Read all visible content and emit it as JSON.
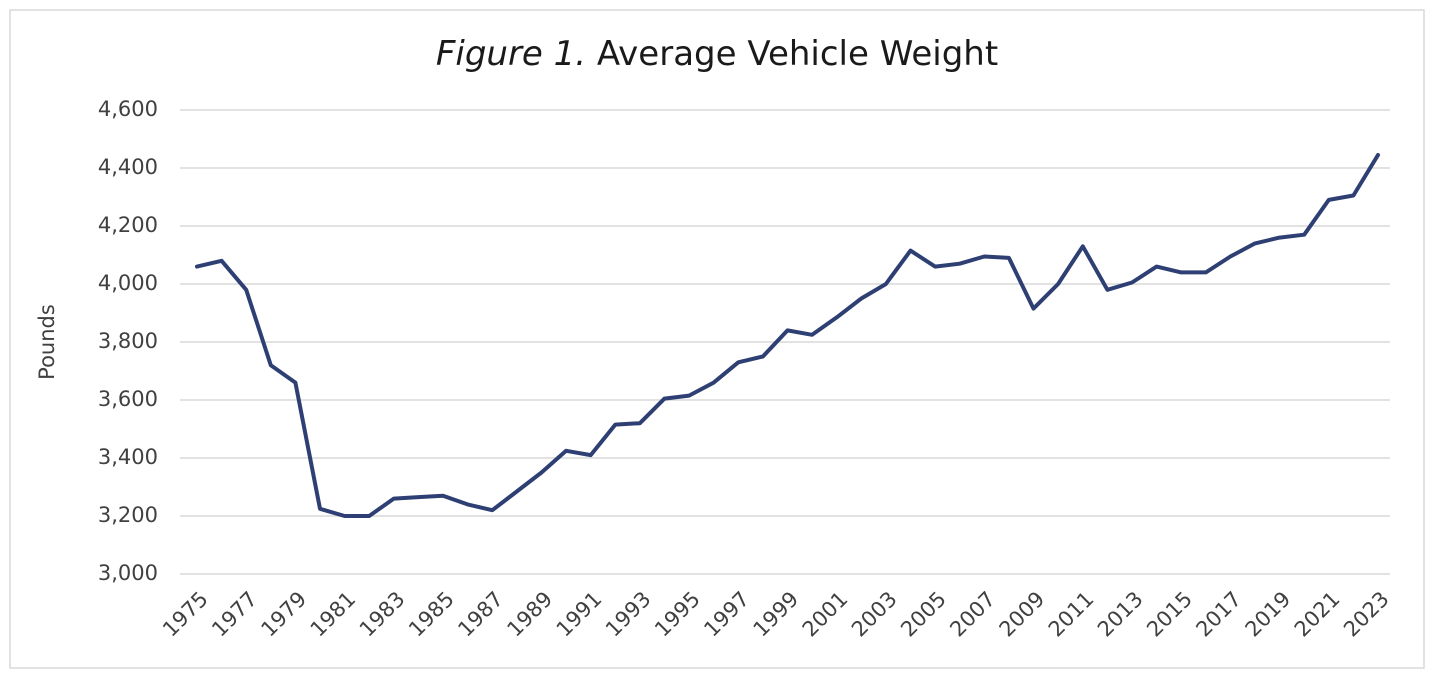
{
  "chart_data": {
    "type": "line",
    "title_italic": "Figure 1.",
    "title": "Average Vehicle Weight",
    "y_label": "Pounds",
    "categories": [
      "1975",
      null,
      "1977",
      null,
      "1979",
      null,
      "1981",
      null,
      "1983",
      null,
      "1985",
      null,
      "1987",
      null,
      "1989",
      null,
      "1991",
      null,
      "1993",
      null,
      "1995",
      null,
      "1997",
      null,
      "1999",
      null,
      "2001",
      null,
      "2003",
      null,
      "2005",
      null,
      "2007",
      null,
      "2009",
      null,
      "2011",
      null,
      "2013",
      null,
      "2015",
      null,
      "2017",
      null,
      "2019",
      null,
      "2021",
      null,
      "2023"
    ],
    "series": [
      {
        "name": "Average Vehicle Weight",
        "color": "#2e3f73",
        "values": [
          4060,
          4080,
          3980,
          3720,
          3660,
          3225,
          3200,
          3200,
          3260,
          3265,
          3270,
          3240,
          3220,
          3285,
          3350,
          3425,
          3410,
          3515,
          3520,
          3605,
          3615,
          3660,
          3730,
          3750,
          3840,
          3825,
          3885,
          3950,
          4000,
          4115,
          4060,
          4070,
          4095,
          4090,
          3915,
          4000,
          4130,
          3980,
          4005,
          4060,
          4040,
          4040,
          4095,
          4140,
          4160,
          4170,
          4290,
          4305,
          4445
        ]
      }
    ],
    "ylim": [
      3000,
      4600
    ],
    "yticks": [
      {
        "value": 3000,
        "label": "3,000"
      },
      {
        "value": 3200,
        "label": "3,200"
      },
      {
        "value": 3400,
        "label": "3,400"
      },
      {
        "value": 3600,
        "label": "3,600"
      },
      {
        "value": 3800,
        "label": "3,800"
      },
      {
        "value": 4000,
        "label": "4,000"
      },
      {
        "value": 4200,
        "label": "4,200"
      },
      {
        "value": 4400,
        "label": "4,400"
      },
      {
        "value": 4600,
        "label": "4,600"
      }
    ],
    "grid": true
  }
}
